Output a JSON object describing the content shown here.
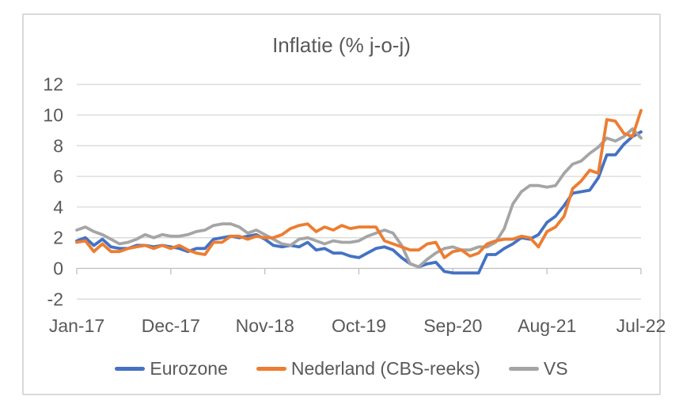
{
  "chart_data": {
    "type": "line",
    "title": "Inflatie (% j-o-j)",
    "xlabel": "",
    "ylabel": "",
    "frequency": "monthly",
    "x_start": "Jan-17",
    "x_end": "Jul-22",
    "x_tick_labels": [
      "Jan-17",
      "Dec-17",
      "Nov-18",
      "Oct-19",
      "Sep-20",
      "Aug-21",
      "Jul-22"
    ],
    "y_ticks": [
      12,
      10,
      8,
      6,
      4,
      2,
      0,
      -2
    ],
    "y_tick_labels": [
      "12",
      "10",
      "8",
      "6",
      "4",
      "2",
      "0",
      "-2"
    ],
    "ylim": [
      -2,
      12
    ],
    "grid": true,
    "legend_position": "bottom",
    "series": [
      {
        "name": "Eurozone",
        "color": "#4472C4",
        "values": [
          1.8,
          2.0,
          1.5,
          1.9,
          1.4,
          1.3,
          1.3,
          1.5,
          1.5,
          1.4,
          1.5,
          1.4,
          1.3,
          1.1,
          1.3,
          1.3,
          1.9,
          2.0,
          2.1,
          2.0,
          2.1,
          2.2,
          1.9,
          1.5,
          1.4,
          1.5,
          1.4,
          1.7,
          1.2,
          1.3,
          1.0,
          1.0,
          0.8,
          0.7,
          1.0,
          1.3,
          1.4,
          1.2,
          0.7,
          0.3,
          0.1,
          0.3,
          0.4,
          -0.2,
          -0.3,
          -0.3,
          -0.3,
          -0.3,
          0.9,
          0.9,
          1.3,
          1.6,
          2.0,
          1.9,
          2.2,
          3.0,
          3.4,
          4.1,
          4.9,
          5.0,
          5.1,
          5.9,
          7.4,
          7.4,
          8.1,
          8.6,
          8.9
        ]
      },
      {
        "name": "Nederland (CBS-reeks)",
        "color": "#ED7D31",
        "values": [
          1.7,
          1.8,
          1.1,
          1.6,
          1.1,
          1.1,
          1.3,
          1.4,
          1.5,
          1.3,
          1.5,
          1.3,
          1.5,
          1.2,
          1.0,
          0.9,
          1.7,
          1.7,
          2.1,
          2.1,
          1.9,
          2.1,
          2.0,
          2.0,
          2.2,
          2.6,
          2.8,
          2.9,
          2.4,
          2.7,
          2.5,
          2.8,
          2.6,
          2.7,
          2.7,
          2.7,
          1.8,
          1.6,
          1.4,
          1.2,
          1.2,
          1.6,
          1.7,
          0.7,
          1.1,
          1.2,
          0.8,
          1.0,
          1.6,
          1.8,
          1.9,
          1.9,
          2.1,
          2.0,
          1.4,
          2.4,
          2.7,
          3.4,
          5.2,
          5.7,
          6.4,
          6.2,
          9.7,
          9.6,
          8.8,
          8.6,
          10.3
        ]
      },
      {
        "name": "VS",
        "color": "#A5A5A5",
        "values": [
          2.5,
          2.7,
          2.4,
          2.2,
          1.9,
          1.6,
          1.7,
          1.9,
          2.2,
          2.0,
          2.2,
          2.1,
          2.1,
          2.2,
          2.4,
          2.5,
          2.8,
          2.9,
          2.9,
          2.7,
          2.3,
          2.5,
          2.2,
          1.9,
          1.6,
          1.5,
          1.9,
          2.0,
          1.8,
          1.6,
          1.8,
          1.7,
          1.7,
          1.8,
          2.1,
          2.3,
          2.5,
          2.3,
          1.5,
          0.3,
          0.1,
          0.6,
          1.0,
          1.3,
          1.4,
          1.2,
          1.2,
          1.4,
          1.4,
          1.7,
          2.6,
          4.2,
          5.0,
          5.4,
          5.4,
          5.3,
          5.4,
          6.2,
          6.8,
          7.0,
          7.5,
          7.9,
          8.5,
          8.3,
          8.6,
          9.1,
          8.5
        ]
      }
    ]
  },
  "colors": {
    "text": "#595959",
    "gridline": "#D9D9D9",
    "axis_line": "#BFBFBF",
    "frame_border": "#D9D9D9",
    "background": "#FFFFFF"
  }
}
